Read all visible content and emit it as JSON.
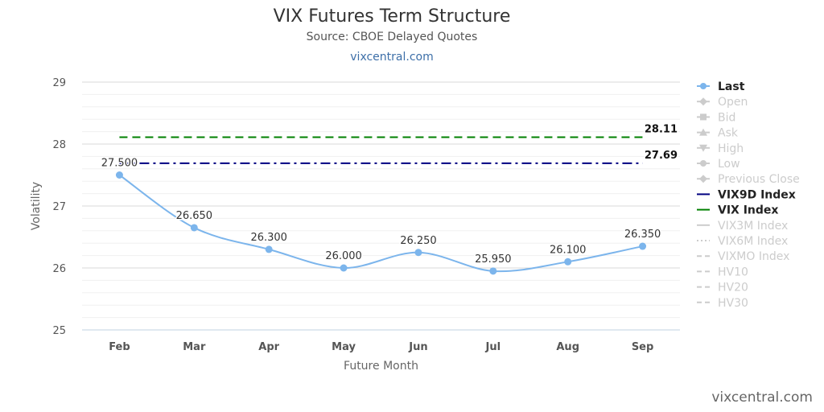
{
  "header": {
    "title": "VIX Futures Term Structure",
    "subtitle": "Source: CBOE Delayed Quotes",
    "link": "vixcentral.com"
  },
  "footer": {
    "credit": "vixcentral.com"
  },
  "chart_data": {
    "type": "line",
    "title": "VIX Futures Term Structure",
    "subtitle": "Source: CBOE Delayed Quotes",
    "xlabel": "Future Month",
    "ylabel": "Volatility",
    "categories": [
      "Feb",
      "Mar",
      "Apr",
      "May",
      "Jun",
      "Jul",
      "Aug",
      "Sep"
    ],
    "ylim": [
      25,
      29
    ],
    "yticks": [
      25,
      26,
      27,
      28,
      29
    ],
    "grid": true,
    "legend_position": "right",
    "series": [
      {
        "name": "Last",
        "values": [
          27.5,
          26.65,
          26.3,
          26.0,
          26.25,
          25.95,
          26.1,
          26.35
        ],
        "labels": [
          "27.500",
          "26.650",
          "26.300",
          "26.000",
          "26.250",
          "25.950",
          "26.100",
          "26.350"
        ],
        "color": "#7cb5ec",
        "visible": true
      },
      {
        "name": "VIX9D Index",
        "value": 27.69,
        "value_label": "27.69",
        "color": "#000080",
        "dash": "dashdot",
        "visible": true
      },
      {
        "name": "VIX Index",
        "value": 28.11,
        "value_label": "28.11",
        "color": "#008000",
        "dash": "dash",
        "visible": true
      }
    ],
    "legend": [
      {
        "name": "Last",
        "symbol": "circle",
        "line": "solid",
        "color": "#7cb5ec",
        "visible": true
      },
      {
        "name": "Open",
        "symbol": "diamond",
        "line": "solid",
        "color": "#cccccc",
        "visible": false
      },
      {
        "name": "Bid",
        "symbol": "square",
        "line": "solid",
        "color": "#cccccc",
        "visible": false
      },
      {
        "name": "Ask",
        "symbol": "triangle",
        "line": "solid",
        "color": "#cccccc",
        "visible": false
      },
      {
        "name": "High",
        "symbol": "triangle-down",
        "line": "solid",
        "color": "#cccccc",
        "visible": false
      },
      {
        "name": "Low",
        "symbol": "circle",
        "line": "solid",
        "color": "#cccccc",
        "visible": false
      },
      {
        "name": "Previous Close",
        "symbol": "diamond",
        "line": "solid",
        "color": "#cccccc",
        "visible": false
      },
      {
        "name": "VIX9D Index",
        "symbol": "none",
        "line": "solid",
        "color": "#000080",
        "visible": true
      },
      {
        "name": "VIX Index",
        "symbol": "none",
        "line": "solid",
        "color": "#008000",
        "visible": true
      },
      {
        "name": "VIX3M Index",
        "symbol": "none",
        "line": "solid",
        "color": "#cccccc",
        "visible": false
      },
      {
        "name": "VIX6M Index",
        "symbol": "none",
        "line": "dot",
        "color": "#cccccc",
        "visible": false
      },
      {
        "name": "VIXMO Index",
        "symbol": "none",
        "line": "dash",
        "color": "#cccccc",
        "visible": false
      },
      {
        "name": "HV10",
        "symbol": "none",
        "line": "dash",
        "color": "#cccccc",
        "visible": false
      },
      {
        "name": "HV20",
        "symbol": "none",
        "line": "dash",
        "color": "#cccccc",
        "visible": false
      },
      {
        "name": "HV30",
        "symbol": "none",
        "line": "dash",
        "color": "#cccccc",
        "visible": false
      }
    ]
  }
}
